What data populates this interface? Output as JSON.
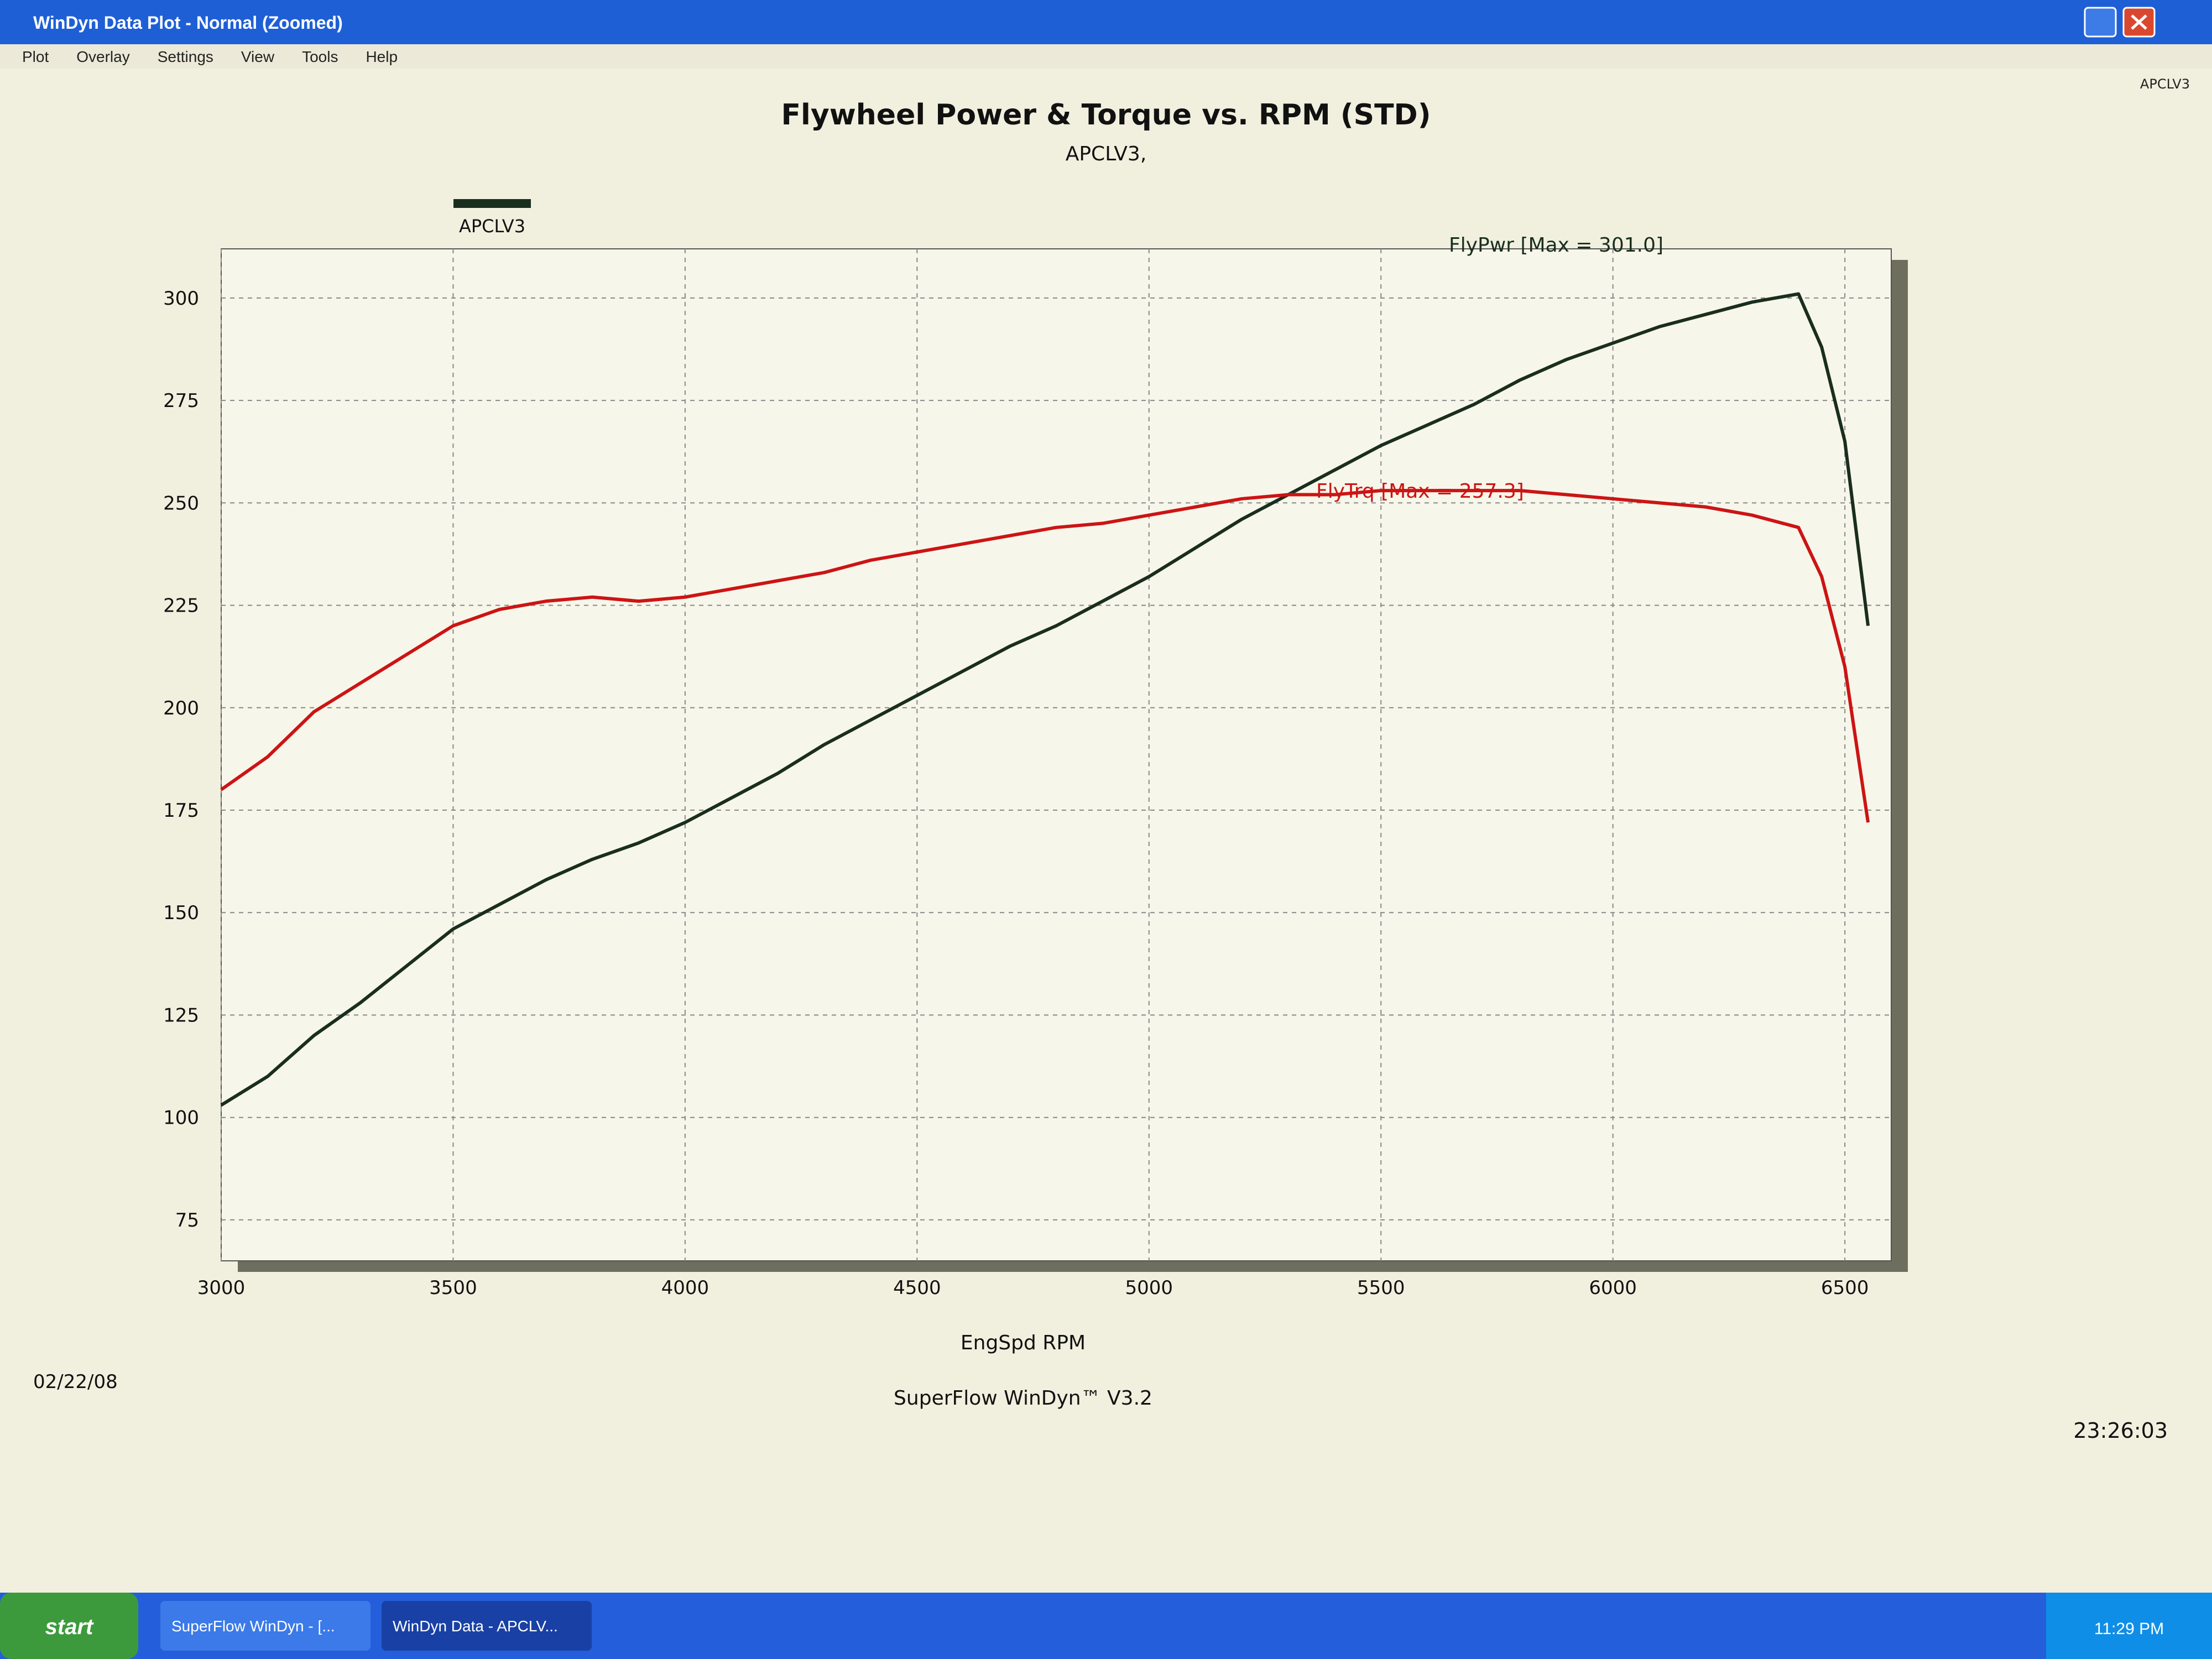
{
  "window": {
    "title": "WinDyn Data Plot - Normal  (Zoomed)",
    "menu": [
      "Plot",
      "Overlay",
      "Settings",
      "View",
      "Tools",
      "Help"
    ],
    "corner_label": "APCLV3"
  },
  "chart_data": {
    "type": "line",
    "title": "Flywheel Power & Torque vs. RPM (STD)",
    "subtitle": "APCLV3,",
    "legend_label": "APCLV3",
    "x_label": "EngSpd RPM",
    "x": [
      3000,
      3100,
      3200,
      3300,
      3400,
      3500,
      3600,
      3700,
      3800,
      3900,
      4000,
      4100,
      4200,
      4300,
      4400,
      4500,
      4600,
      4700,
      4800,
      4900,
      5000,
      5100,
      5200,
      5300,
      5400,
      5500,
      5600,
      5700,
      5800,
      5900,
      6000,
      6100,
      6200,
      6300,
      6400,
      6450,
      6500,
      6550
    ],
    "series": [
      {
        "name": "FlyPwr",
        "color": "#1a2e1e",
        "annotation": "FlyPwr [Max = 301.0]",
        "values": [
          103,
          110,
          120,
          128,
          137,
          146,
          152,
          158,
          163,
          167,
          172,
          178,
          184,
          191,
          197,
          203,
          209,
          215,
          220,
          226,
          232,
          239,
          246,
          252,
          258,
          264,
          269,
          274,
          280,
          285,
          289,
          293,
          296,
          299,
          301,
          288,
          265,
          220
        ]
      },
      {
        "name": "FlyTrq",
        "color": "#cc1414",
        "annotation": "FlyTrq [Max = 257.3]",
        "values": [
          180,
          188,
          199,
          206,
          213,
          220,
          224,
          226,
          227,
          226,
          227,
          229,
          231,
          233,
          236,
          238,
          240,
          242,
          244,
          245,
          247,
          249,
          251,
          252,
          252,
          253,
          253,
          253,
          253,
          252,
          251,
          250,
          249,
          247,
          244,
          232,
          210,
          172
        ]
      }
    ],
    "xlim": [
      3000,
      6600
    ],
    "xticks": [
      3000,
      3500,
      4000,
      4500,
      5000,
      5500,
      6000,
      6500
    ],
    "ylim": [
      65,
      312
    ],
    "yticks": [
      75,
      100,
      125,
      150,
      175,
      200,
      225,
      250,
      275,
      300
    ],
    "grid": true,
    "date": "02/22/08",
    "footer": "SuperFlow WinDyn™ V3.2",
    "time": "23:26:03"
  },
  "taskbar": {
    "start": "start",
    "tasks": [
      "SuperFlow WinDyn - [...",
      "WinDyn Data - APCLV..."
    ],
    "clock": "11:29 PM"
  }
}
